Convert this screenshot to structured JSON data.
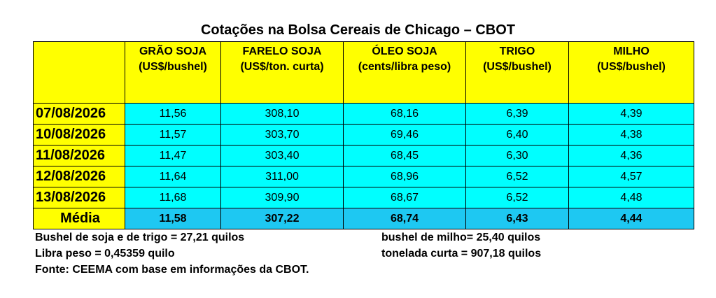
{
  "title": "Cotações na Bolsa Cereais de Chicago – CBOT",
  "table": {
    "columns": [
      {
        "name": "GRÃO SOJA",
        "unit": "(US$/bushel)"
      },
      {
        "name": "FARELO SOJA",
        "unit": "(US$/ton. curta)"
      },
      {
        "name": "ÓLEO SOJA",
        "unit": "(cents/libra peso)"
      },
      {
        "name": "TRIGO",
        "unit": "(US$/bushel)"
      },
      {
        "name": "MILHO",
        "unit": "(US$/bushel)"
      }
    ],
    "rows": [
      {
        "date": "07/08/2026",
        "values": [
          "11,56",
          "308,10",
          "68,16",
          "6,39",
          "4,39"
        ]
      },
      {
        "date": "10/08/2026",
        "values": [
          "11,57",
          "303,70",
          "69,46",
          "6,40",
          "4,38"
        ]
      },
      {
        "date": "11/08/2026",
        "values": [
          "11,47",
          "303,40",
          "68,45",
          "6,30",
          "4,36"
        ]
      },
      {
        "date": "12/08/2026",
        "values": [
          "11,64",
          "311,00",
          "68,96",
          "6,52",
          "4,57"
        ]
      },
      {
        "date": "13/08/2026",
        "values": [
          "11,68",
          "309,90",
          "68,67",
          "6,52",
          "4,48"
        ]
      }
    ],
    "average": {
      "label": "Média",
      "values": [
        "11,58",
        "307,22",
        "68,74",
        "6,43",
        "4,44"
      ]
    }
  },
  "notes": [
    "Bushel de soja e de trigo = 27,21 quilos",
    "bushel de milho= 25,40 quilos",
    "Libra peso = 0,45359 quilo",
    "tonelada curta = 907,18 quilos",
    "Fonte: CEEMA com base em informações da CBOT."
  ]
}
